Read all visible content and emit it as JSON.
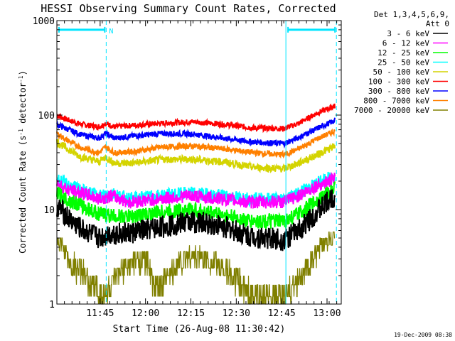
{
  "chart_data": {
    "type": "line",
    "title": "HESSI Observing Summary Count Rates, Corrected",
    "xlabel": "Start Time (26-Aug-08 11:30:42)",
    "ylabel": "Corrected Count Rate (s",
    "ylabel_sup1": "-1",
    "ylabel_mid": " detector",
    "ylabel_sup2": "-1",
    "ylabel_end": ")",
    "yscale": "log",
    "ylim": [
      1,
      1000
    ],
    "xlim_minutes": [
      0,
      94
    ],
    "x_ticks": [
      {
        "label": "11:45",
        "minute": 14.3
      },
      {
        "label": "12:00",
        "minute": 29.3
      },
      {
        "label": "12:15",
        "minute": 44.3
      },
      {
        "label": "12:30",
        "minute": 59.3
      },
      {
        "label": "12:45",
        "minute": 74.3
      },
      {
        "label": "13:00",
        "minute": 89.3
      }
    ],
    "y_ticks": [
      {
        "label": "1",
        "value": 1
      },
      {
        "label": "10",
        "value": 10
      },
      {
        "label": "100",
        "value": 100
      },
      {
        "label": "1000",
        "value": 1000
      }
    ],
    "legend": {
      "position": "right",
      "header": [
        "Det 1,3,4,5,6,9,",
        "Att 0"
      ],
      "entries": [
        {
          "name": "3 - 6 keV",
          "color": "#000000"
        },
        {
          "name": "6 - 12 keV",
          "color": "#ff00ff"
        },
        {
          "name": "12 - 25 keV",
          "color": "#00ff00"
        },
        {
          "name": "25 - 50 keV",
          "color": "#00ffff"
        },
        {
          "name": "50 - 100 keV",
          "color": "#d4d400"
        },
        {
          "name": "100 - 300 keV",
          "color": "#ff0000"
        },
        {
          "name": "300 - 800 keV",
          "color": "#0000ff"
        },
        {
          "name": "800 - 7000 keV",
          "color": "#ff8000"
        },
        {
          "name": "7000 - 20000 keV",
          "color": "#808000"
        }
      ]
    },
    "night_marks": [
      {
        "label": "N",
        "start_minute": 0,
        "end_minute": 16.3,
        "level": 800
      },
      {
        "label": "",
        "start_minute": 75.7,
        "end_minute": 92.4,
        "level": 800
      }
    ],
    "dashed_lines_minutes": [
      16.3,
      92.4
    ],
    "solid_lines_minutes": [
      0,
      75.7
    ],
    "series": [
      {
        "name": "100 - 300 keV",
        "color": "#ff0000",
        "noise": 0.03,
        "points": [
          [
            0,
            100
          ],
          [
            3,
            90
          ],
          [
            8,
            80
          ],
          [
            14,
            75
          ],
          [
            16,
            82
          ],
          [
            19,
            75
          ],
          [
            25,
            78
          ],
          [
            35,
            82
          ],
          [
            45,
            85
          ],
          [
            55,
            80
          ],
          [
            65,
            73
          ],
          [
            75,
            72
          ],
          [
            80,
            82
          ],
          [
            86,
            105
          ],
          [
            92,
            125
          ]
        ]
      },
      {
        "name": "300 - 800 keV",
        "color": "#0000ff",
        "noise": 0.03,
        "points": [
          [
            0,
            80
          ],
          [
            3,
            72
          ],
          [
            8,
            62
          ],
          [
            14,
            57
          ],
          [
            16,
            64
          ],
          [
            19,
            57
          ],
          [
            25,
            60
          ],
          [
            35,
            64
          ],
          [
            45,
            63
          ],
          [
            55,
            57
          ],
          [
            65,
            52
          ],
          [
            75,
            50
          ],
          [
            80,
            58
          ],
          [
            86,
            72
          ],
          [
            92,
            88
          ]
        ]
      },
      {
        "name": "800 - 7000 keV",
        "color": "#ff8000",
        "noise": 0.03,
        "points": [
          [
            0,
            64
          ],
          [
            3,
            55
          ],
          [
            8,
            45
          ],
          [
            14,
            40
          ],
          [
            16,
            46
          ],
          [
            19,
            40
          ],
          [
            25,
            41
          ],
          [
            35,
            46
          ],
          [
            45,
            47
          ],
          [
            55,
            44
          ],
          [
            65,
            40
          ],
          [
            75,
            38
          ],
          [
            80,
            44
          ],
          [
            86,
            56
          ],
          [
            92,
            68
          ]
        ]
      },
      {
        "name": "50 - 100 keV",
        "color": "#d4d400",
        "noise": 0.04,
        "points": [
          [
            0,
            52
          ],
          [
            3,
            45
          ],
          [
            8,
            36
          ],
          [
            14,
            32
          ],
          [
            16,
            36
          ],
          [
            19,
            31
          ],
          [
            25,
            31
          ],
          [
            35,
            34
          ],
          [
            45,
            34
          ],
          [
            55,
            32
          ],
          [
            65,
            28
          ],
          [
            75,
            27
          ],
          [
            80,
            31
          ],
          [
            86,
            38
          ],
          [
            92,
            47
          ]
        ]
      },
      {
        "name": "25 - 50 keV",
        "color": "#00ffff",
        "noise": 0.07,
        "points": [
          [
            0,
            21
          ],
          [
            4,
            18
          ],
          [
            8,
            16
          ],
          [
            14,
            14
          ],
          [
            18,
            15
          ],
          [
            24,
            13
          ],
          [
            34,
            14
          ],
          [
            44,
            15
          ],
          [
            54,
            14
          ],
          [
            64,
            13
          ],
          [
            75,
            13
          ],
          [
            80,
            15
          ],
          [
            86,
            19
          ],
          [
            92,
            23
          ]
        ]
      },
      {
        "name": "6 - 12 keV",
        "color": "#ff00ff",
        "noise": 0.07,
        "points": [
          [
            0,
            19
          ],
          [
            4,
            16
          ],
          [
            8,
            15
          ],
          [
            14,
            13
          ],
          [
            18,
            14
          ],
          [
            24,
            12
          ],
          [
            34,
            13
          ],
          [
            44,
            14
          ],
          [
            54,
            13
          ],
          [
            64,
            12
          ],
          [
            75,
            12
          ],
          [
            80,
            14
          ],
          [
            86,
            18
          ],
          [
            92,
            21
          ]
        ]
      },
      {
        "name": "12 - 25 keV",
        "color": "#00ff00",
        "noise": 0.08,
        "points": [
          [
            0,
            15
          ],
          [
            4,
            12.5
          ],
          [
            8,
            11
          ],
          [
            14,
            9
          ],
          [
            18,
            8.6
          ],
          [
            24,
            8.4
          ],
          [
            34,
            9.4
          ],
          [
            44,
            10
          ],
          [
            54,
            9
          ],
          [
            64,
            7.5
          ],
          [
            75,
            7.5
          ],
          [
            80,
            9
          ],
          [
            86,
            12.5
          ],
          [
            92,
            17
          ]
        ]
      },
      {
        "name": "3 - 6 keV",
        "color": "#000000",
        "noise": 0.12,
        "points": [
          [
            0,
            11
          ],
          [
            4,
            8
          ],
          [
            8,
            6.2
          ],
          [
            14,
            5
          ],
          [
            18,
            5.6
          ],
          [
            24,
            5.6
          ],
          [
            34,
            6.5
          ],
          [
            44,
            7.5
          ],
          [
            54,
            6.8
          ],
          [
            64,
            5.2
          ],
          [
            75,
            4.8
          ],
          [
            80,
            6
          ],
          [
            86,
            9.5
          ],
          [
            92,
            14
          ]
        ]
      },
      {
        "name": "7000 - 20000 keV",
        "color": "#808000",
        "noise": 0,
        "points": [
          [
            0,
            4.5
          ],
          [
            2,
            3.8
          ],
          [
            4,
            2.4
          ],
          [
            8,
            2
          ],
          [
            10,
            1.6
          ],
          [
            14,
            1.3
          ],
          [
            16,
            1.2
          ],
          [
            19,
            1.6
          ],
          [
            22,
            2
          ],
          [
            26,
            2.6
          ],
          [
            30,
            2.6
          ],
          [
            32,
            1.4
          ],
          [
            36,
            1.6
          ],
          [
            40,
            2.4
          ],
          [
            44,
            3
          ],
          [
            48,
            2.8
          ],
          [
            52,
            2.4
          ],
          [
            56,
            2
          ],
          [
            60,
            1.6
          ],
          [
            64,
            1.2
          ],
          [
            70,
            1.1
          ],
          [
            75,
            1.2
          ],
          [
            78,
            1.4
          ],
          [
            82,
            2
          ],
          [
            86,
            3
          ],
          [
            88,
            4
          ],
          [
            90,
            5
          ],
          [
            92,
            5.8
          ]
        ]
      }
    ]
  },
  "footer": {
    "timestamp": "19-Dec-2009 08:38"
  }
}
